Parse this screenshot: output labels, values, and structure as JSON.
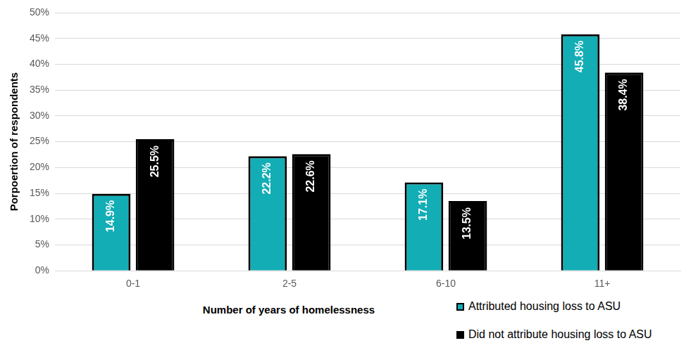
{
  "chart_data": {
    "type": "bar",
    "y_label": "Porpoertion of respondents",
    "x_label": "Number of years of homelessness",
    "categories": [
      "0-1",
      "2-5",
      "6-10",
      "11+"
    ],
    "series": [
      {
        "name": "Attributed housing loss to ASU",
        "color": "#13adb5",
        "values": [
          14.9,
          22.2,
          17.1,
          45.8
        ],
        "value_labels": [
          "14.9%",
          "22.2%",
          "17.1%",
          "45.8%"
        ]
      },
      {
        "name": "Did not attribute housing loss to ASU",
        "color": "#000000",
        "values": [
          25.5,
          22.6,
          13.5,
          38.4
        ],
        "value_labels": [
          "25.5%",
          "22.6%",
          "13.5%",
          "38.4%"
        ]
      }
    ],
    "ylim": [
      0,
      50
    ],
    "yticks": [
      {
        "value": 0,
        "label": "0%"
      },
      {
        "value": 5,
        "label": "5%"
      },
      {
        "value": 10,
        "label": "10%"
      },
      {
        "value": 15,
        "label": "15%"
      },
      {
        "value": 20,
        "label": "20%"
      },
      {
        "value": 25,
        "label": "25%"
      },
      {
        "value": 30,
        "label": "30%"
      },
      {
        "value": 35,
        "label": "35%"
      },
      {
        "value": 40,
        "label": "40%"
      },
      {
        "value": 45,
        "label": "45%"
      },
      {
        "value": 50,
        "label": "50%"
      }
    ],
    "grid": true,
    "legend": "bottom right",
    "data_labels": true
  }
}
